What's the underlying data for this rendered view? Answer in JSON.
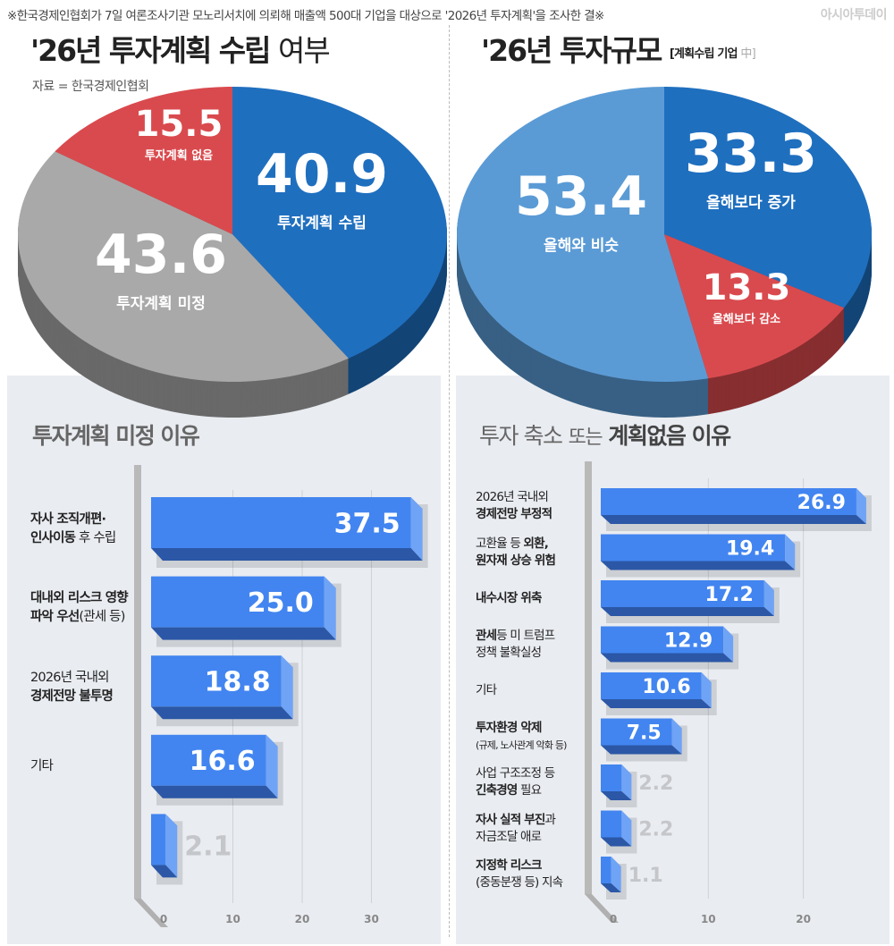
{
  "header": {
    "note": "※한국경제인협회가 7일 여론조사기관 모노리서치에 의뢰해 매출액 500대 기업을 대상으로 '2026년 투자계획'을 조사한 결※",
    "brand": "아시아투데이",
    "source": "자료 = 한국경제인협회"
  },
  "colors": {
    "blue": "#1f6fbf",
    "gray": "#a9a9a9",
    "red": "#d94a4e",
    "lightblue": "#5b9bd5",
    "bar": "#4285f0",
    "panel": "#e9ecf1"
  },
  "chart_data": [
    {
      "type": "pie",
      "title": {
        "bold": "'26년 투자계획 수립",
        "light": "여부"
      },
      "slices": [
        {
          "label": "투자계획 수립",
          "value": 40.9,
          "value_text": "40.9",
          "color": "#1f6fbf"
        },
        {
          "label": "투자계획 미정",
          "value": 43.6,
          "value_text": "43.6",
          "color": "#a9a9a9"
        },
        {
          "label": "투자계획 없음",
          "value": 15.5,
          "value_text": "15.5",
          "color": "#d94a4e"
        }
      ]
    },
    {
      "type": "pie",
      "title": {
        "bold": "'26년 투자규모",
        "sub": "[계획수립 기업",
        "sub_light": "中]"
      },
      "slices": [
        {
          "label": "올해보다 증가",
          "value": 33.3,
          "value_text": "33.3",
          "color": "#1f6fbf"
        },
        {
          "label": "올해보다 감소",
          "value": 13.3,
          "value_text": "13.3",
          "color": "#d94a4e"
        },
        {
          "label": "올해와 비슷",
          "value": 53.4,
          "value_text": "53.4",
          "color": "#5b9bd5"
        }
      ]
    },
    {
      "type": "bar",
      "orientation": "horizontal",
      "title": {
        "a": "투자계획 미정 이유"
      },
      "xlim": [
        0,
        37.5
      ],
      "xticks": [
        "0",
        "10",
        "20",
        "30"
      ],
      "xtick_values": [
        0,
        10,
        20,
        30
      ],
      "bars": [
        {
          "value": 37.5,
          "value_text": "37.5",
          "label": [
            [
              {
                "t": "자사 조직개편·",
                "b": true
              }
            ],
            [
              {
                "t": "인사이동",
                "b": true
              },
              {
                "t": " 후 수립",
                "b": false
              }
            ]
          ]
        },
        {
          "value": 25.0,
          "value_text": "25.0",
          "label": [
            [
              {
                "t": "대내외 리스크 영향",
                "b": true
              }
            ],
            [
              {
                "t": "파악 우선",
                "b": true
              },
              {
                "t": "(관세 등)",
                "b": false
              }
            ]
          ]
        },
        {
          "value": 18.8,
          "value_text": "18.8",
          "label": [
            [
              {
                "t": "2026년 국내외",
                "b": false
              }
            ],
            [
              {
                "t": "경제전망 불투명",
                "b": true
              }
            ]
          ]
        },
        {
          "value": 16.6,
          "value_text": "16.6",
          "label": [
            [
              {
                "t": "기타",
                "b": false
              }
            ]
          ]
        },
        {
          "value": 2.1,
          "value_text": "2.1",
          "label": []
        }
      ]
    },
    {
      "type": "bar",
      "orientation": "horizontal",
      "title": {
        "a": "투자 축소",
        "b": "또는",
        "c": "계획없음 이유"
      },
      "xlim": [
        0,
        26.9
      ],
      "xticks": [
        "0",
        "10",
        "20"
      ],
      "xtick_values": [
        0,
        10,
        20
      ],
      "bars": [
        {
          "value": 26.9,
          "value_text": "26.9",
          "label": [
            [
              {
                "t": "2026년 국내외",
                "b": false
              }
            ],
            [
              {
                "t": "경제전망 부정적",
                "b": true
              }
            ]
          ]
        },
        {
          "value": 19.4,
          "value_text": "19.4",
          "label": [
            [
              {
                "t": "고환율 등 ",
                "b": false
              },
              {
                "t": "외환,",
                "b": true
              }
            ],
            [
              {
                "t": "원자재 상승 위험",
                "b": true
              }
            ]
          ]
        },
        {
          "value": 17.2,
          "value_text": "17.2",
          "label": [
            [
              {
                "t": "내수시장 위축",
                "b": true
              }
            ]
          ]
        },
        {
          "value": 12.9,
          "value_text": "12.9",
          "label": [
            [
              {
                "t": "관세",
                "b": true
              },
              {
                "t": "등 미 트럼프",
                "b": false
              }
            ],
            [
              {
                "t": "정책 불확실성",
                "b": false
              }
            ]
          ]
        },
        {
          "value": 10.6,
          "value_text": "10.6",
          "label": [
            [
              {
                "t": "기타",
                "b": false
              }
            ]
          ]
        },
        {
          "value": 7.5,
          "value_text": "7.5",
          "label": [
            [
              {
                "t": "투자환경 악제",
                "b": true
              }
            ],
            [
              {
                "t": "(규제, 노사관계 악화 등)",
                "b": false,
                "s": true
              }
            ]
          ]
        },
        {
          "value": 2.2,
          "value_text": "2.2",
          "label": [
            [
              {
                "t": "사업 구조조정 등",
                "b": false
              }
            ],
            [
              {
                "t": "긴축경영",
                "b": true
              },
              {
                "t": " 필요",
                "b": false
              }
            ]
          ]
        },
        {
          "value": 2.2,
          "value_text": "2.2",
          "label": [
            [
              {
                "t": "자사 실적  부진",
                "b": true
              },
              {
                "t": "과",
                "b": false
              }
            ],
            [
              {
                "t": "자금조달 애로",
                "b": false
              }
            ]
          ]
        },
        {
          "value": 1.1,
          "value_text": "1.1",
          "label": [
            [
              {
                "t": "지정학 리스크",
                "b": true
              }
            ],
            [
              {
                "t": "(중동분쟁 등) 지속",
                "b": false
              }
            ]
          ]
        }
      ]
    }
  ]
}
